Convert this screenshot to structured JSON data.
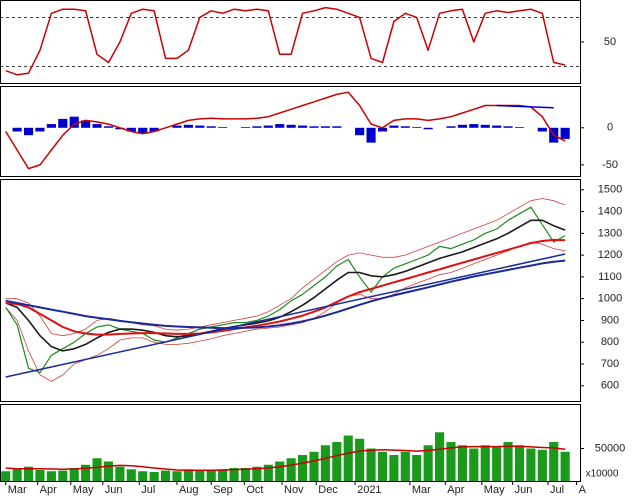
{
  "chart_data": [
    {
      "type": "line",
      "ylim": [
        0,
        100
      ],
      "yticks": [
        50
      ],
      "reference_lines": [
        80,
        20
      ],
      "series": [
        {
          "color": "#cc0000",
          "values": [
            15,
            10,
            12,
            40,
            85,
            90,
            90,
            88,
            35,
            25,
            50,
            85,
            90,
            88,
            30,
            30,
            40,
            80,
            88,
            85,
            90,
            88,
            90,
            88,
            35,
            35,
            85,
            88,
            92,
            90,
            85,
            80,
            30,
            25,
            75,
            85,
            80,
            40,
            85,
            88,
            90,
            50,
            85,
            88,
            86,
            88,
            90,
            85,
            25,
            22
          ]
        }
      ]
    },
    {
      "type": "combo",
      "ylim": [
        -65,
        55
      ],
      "yticks": [
        0,
        -50
      ],
      "series": [
        {
          "kind": "bar",
          "color": "#0000cc",
          "values": [
            0,
            -5,
            -10,
            -5,
            5,
            12,
            15,
            10,
            5,
            2,
            -2,
            -5,
            -8,
            -5,
            0,
            3,
            4,
            3,
            2,
            1,
            0,
            1,
            2,
            3,
            5,
            4,
            3,
            2,
            2,
            2,
            0,
            -10,
            -20,
            -5,
            3,
            2,
            1,
            -2,
            0,
            2,
            4,
            5,
            4,
            3,
            2,
            1,
            0,
            -5,
            -20,
            -15
          ]
        },
        {
          "kind": "line",
          "color": "#cc0000",
          "values": [
            -5,
            -30,
            -55,
            -50,
            -30,
            -10,
            5,
            10,
            8,
            5,
            0,
            -5,
            -8,
            -5,
            0,
            5,
            10,
            12,
            13,
            12,
            12,
            12,
            13,
            15,
            20,
            25,
            30,
            35,
            40,
            45,
            48,
            30,
            5,
            0,
            10,
            12,
            12,
            10,
            12,
            15,
            20,
            25,
            30,
            30,
            30,
            30,
            28,
            15,
            -10,
            -18
          ]
        }
      ],
      "lines": [
        {
          "color": "#0000cc",
          "x": [
            43,
            48
          ],
          "y": [
            30,
            27
          ]
        }
      ]
    },
    {
      "type": "line",
      "ylim": [
        530,
        1545
      ],
      "yticks": [
        1500,
        1400,
        1300,
        1200,
        1100,
        1000,
        900,
        800,
        700,
        600
      ],
      "series": [
        {
          "color": "#d04040",
          "width": 0.8,
          "values": [
            1000,
            1000,
            980,
            920,
            840,
            830,
            840,
            860,
            900,
            910,
            900,
            890,
            880,
            875,
            860,
            855,
            860,
            870,
            880,
            890,
            900,
            910,
            920,
            940,
            970,
            1000,
            1050,
            1090,
            1130,
            1170,
            1200,
            1210,
            1200,
            1190,
            1190,
            1200,
            1220,
            1240,
            1260,
            1280,
            1300,
            1320,
            1340,
            1360,
            1390,
            1420,
            1450,
            1460,
            1450,
            1430
          ]
        },
        {
          "color": "#d04040",
          "width": 0.8,
          "values": [
            960,
            900,
            760,
            650,
            620,
            650,
            700,
            720,
            740,
            770,
            810,
            820,
            820,
            800,
            790,
            790,
            795,
            805,
            815,
            830,
            840,
            850,
            860,
            865,
            870,
            880,
            890,
            910,
            940,
            980,
            1010,
            1020,
            1000,
            1000,
            1020,
            1050,
            1070,
            1090,
            1110,
            1120,
            1140,
            1160,
            1180,
            1200,
            1220,
            1240,
            1260,
            1250,
            1230,
            1220
          ]
        },
        {
          "color": "#1f8a1f",
          "width": 1.2,
          "values": [
            960,
            880,
            680,
            660,
            740,
            770,
            800,
            840,
            870,
            880,
            860,
            850,
            840,
            810,
            800,
            820,
            840,
            860,
            870,
            880,
            890,
            890,
            900,
            920,
            950,
            990,
            1020,
            1060,
            1100,
            1150,
            1180,
            1100,
            1030,
            1100,
            1140,
            1160,
            1180,
            1200,
            1240,
            1230,
            1250,
            1270,
            1300,
            1320,
            1360,
            1390,
            1420,
            1340,
            1260,
            1290
          ]
        },
        {
          "color": "#1a1a1a",
          "width": 1.6,
          "values": [
            980,
            960,
            900,
            830,
            780,
            760,
            770,
            790,
            820,
            845,
            860,
            860,
            855,
            845,
            830,
            825,
            830,
            840,
            850,
            862,
            872,
            880,
            888,
            898,
            915,
            940,
            970,
            1005,
            1045,
            1085,
            1120,
            1120,
            1105,
            1100,
            1110,
            1125,
            1145,
            1165,
            1185,
            1200,
            1215,
            1235,
            1255,
            1275,
            1300,
            1330,
            1360,
            1360,
            1335,
            1315
          ]
        },
        {
          "color": "#dd1111",
          "width": 2,
          "values": [
            980,
            975,
            960,
            930,
            900,
            870,
            850,
            840,
            835,
            835,
            838,
            840,
            842,
            842,
            840,
            838,
            838,
            840,
            845,
            852,
            860,
            868,
            876,
            885,
            895,
            908,
            922,
            940,
            960,
            985,
            1010,
            1030,
            1045,
            1060,
            1075,
            1090,
            1105,
            1120,
            1135,
            1150,
            1165,
            1180,
            1195,
            1210,
            1225,
            1240,
            1255,
            1265,
            1270,
            1268
          ]
        },
        {
          "color": "#1a2a9a",
          "width": 2,
          "values": [
            990,
            980,
            970,
            960,
            950,
            940,
            930,
            920,
            912,
            905,
            898,
            892,
            886,
            880,
            875,
            872,
            870,
            868,
            866,
            865,
            865,
            866,
            868,
            872,
            878,
            886,
            896,
            908,
            922,
            938,
            955,
            972,
            988,
            1002,
            1015,
            1028,
            1040,
            1052,
            1065,
            1078,
            1090,
            1102,
            1112,
            1122,
            1132,
            1142,
            1152,
            1162,
            1170,
            1175
          ]
        }
      ],
      "lines": [
        {
          "color": "#1a2a9a",
          "x": [
            0,
            49
          ],
          "y": [
            640,
            1205
          ]
        }
      ]
    },
    {
      "type": "combo",
      "ylim": [
        0,
        117000
      ],
      "yticks": [
        50000
      ],
      "ylabel": "x10000",
      "xlim": [
        -0.5,
        50.3
      ],
      "xticks": [
        {
          "value": 0,
          "label": "Mar"
        },
        {
          "value": 2.8,
          "label": "Apr"
        },
        {
          "value": 5.7,
          "label": "May"
        },
        {
          "value": 8.5,
          "label": "Jun"
        },
        {
          "value": 11.7,
          "label": "Jul"
        },
        {
          "value": 15,
          "label": "Aug"
        },
        {
          "value": 18,
          "label": "Sep"
        },
        {
          "value": 20.9,
          "label": "Oct"
        },
        {
          "value": 24.2,
          "label": "Nov"
        },
        {
          "value": 27.2,
          "label": "Dec"
        },
        {
          "value": 30.6,
          "label": "2021"
        },
        {
          "value": 35.4,
          "label": "Mar"
        },
        {
          "value": 38.5,
          "label": "Apr"
        },
        {
          "value": 41.7,
          "label": "May"
        },
        {
          "value": 44.4,
          "label": "Jun"
        },
        {
          "value": 47.5,
          "label": "Jul"
        },
        {
          "value": 50,
          "label": "A"
        }
      ],
      "series": [
        {
          "kind": "bar",
          "color": "#1a9a1a",
          "values": [
            15000,
            18000,
            22000,
            17000,
            15000,
            16000,
            20000,
            25000,
            35000,
            30000,
            22000,
            18000,
            15000,
            14000,
            16000,
            15000,
            18000,
            17000,
            16000,
            18000,
            20000,
            20000,
            22000,
            25000,
            30000,
            35000,
            40000,
            45000,
            55000,
            60000,
            70000,
            65000,
            50000,
            45000,
            40000,
            45000,
            40000,
            55000,
            75000,
            60000,
            55000,
            50000,
            55000,
            52000,
            60000,
            55000,
            50000,
            48000,
            60000,
            45000
          ]
        },
        {
          "kind": "line",
          "color": "#cc0000",
          "values": [
            20000,
            19000,
            19000,
            19000,
            18500,
            18000,
            18500,
            19500,
            21000,
            23000,
            24000,
            23500,
            22000,
            20000,
            18500,
            17000,
            16500,
            16500,
            16500,
            17000,
            17500,
            18000,
            19000,
            20000,
            22000,
            24500,
            27500,
            31000,
            35000,
            39000,
            43000,
            46000,
            47500,
            48000,
            47500,
            47000,
            46000,
            47000,
            49000,
            51000,
            52500,
            53000,
            53000,
            53000,
            53500,
            53500,
            52500,
            51500,
            51000,
            49000
          ]
        }
      ]
    }
  ]
}
